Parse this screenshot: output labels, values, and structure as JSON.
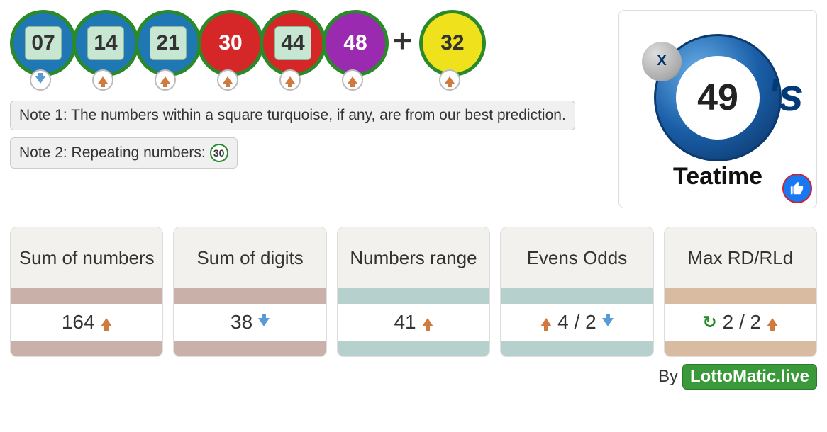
{
  "colors": {
    "ring": "#2a8a2a",
    "ball_blue": "#1f78b4",
    "ball_red": "#d62728",
    "ball_purple": "#9a2bb0",
    "ball_yellow": "#efe21c",
    "prediction_sq_bg": "#c7e7d2",
    "arrow_up": "#d17a3d",
    "arrow_down": "#5b9bd5",
    "sync_green": "#2a8a2a",
    "card_bg": "#f3f1ee",
    "bar_brown": "#c9b1a9",
    "bar_teal": "#b5d0cd",
    "bar_tan": "#d8bba1",
    "note_bg": "#f0f0f0",
    "brand_green": "#3a9a3a",
    "logo_blue": "#1a5fa8",
    "like_blue": "#1877f2",
    "like_border": "#cc2233"
  },
  "balls": {
    "main": [
      {
        "n": "07",
        "bg": "blue",
        "predicted": true,
        "trend": "down"
      },
      {
        "n": "14",
        "bg": "blue",
        "predicted": true,
        "trend": "up"
      },
      {
        "n": "21",
        "bg": "blue",
        "predicted": true,
        "trend": "up"
      },
      {
        "n": "30",
        "bg": "red",
        "predicted": false,
        "trend": "up"
      },
      {
        "n": "44",
        "bg": "red",
        "predicted": true,
        "trend": "up"
      },
      {
        "n": "48",
        "bg": "purple",
        "predicted": false,
        "trend": "up"
      }
    ],
    "bonus": {
      "n": "32",
      "bg": "yellow",
      "predicted": false,
      "trend": "up"
    },
    "plus": "+"
  },
  "notes": {
    "n1": "Note 1: The numbers within a square turquoise, if any, are from our best prediction.",
    "n2_prefix": "Note 2: Repeating numbers:",
    "n2_repeat": "30"
  },
  "logo": {
    "big": "49",
    "suffix": "'s",
    "small": "X",
    "label": "Teatime"
  },
  "stats": [
    {
      "title": "Sum of numbers",
      "bar": "brown",
      "left_icon": null,
      "value": "164",
      "right_icon": "up"
    },
    {
      "title": "Sum of digits",
      "bar": "brown",
      "left_icon": null,
      "value": "38",
      "right_icon": "down"
    },
    {
      "title": "Numbers range",
      "bar": "teal",
      "left_icon": null,
      "value": "41",
      "right_icon": "up"
    },
    {
      "title": "Evens Odds",
      "bar": "teal",
      "left_icon": "up",
      "value": "4 / 2",
      "right_icon": "down"
    },
    {
      "title": "Max RD/RLd",
      "bar": "tan",
      "left_icon": "sync",
      "value": "2 / 2",
      "right_icon": "up"
    }
  ],
  "footer": {
    "by": "By",
    "brand": "LottoMatic.live"
  }
}
